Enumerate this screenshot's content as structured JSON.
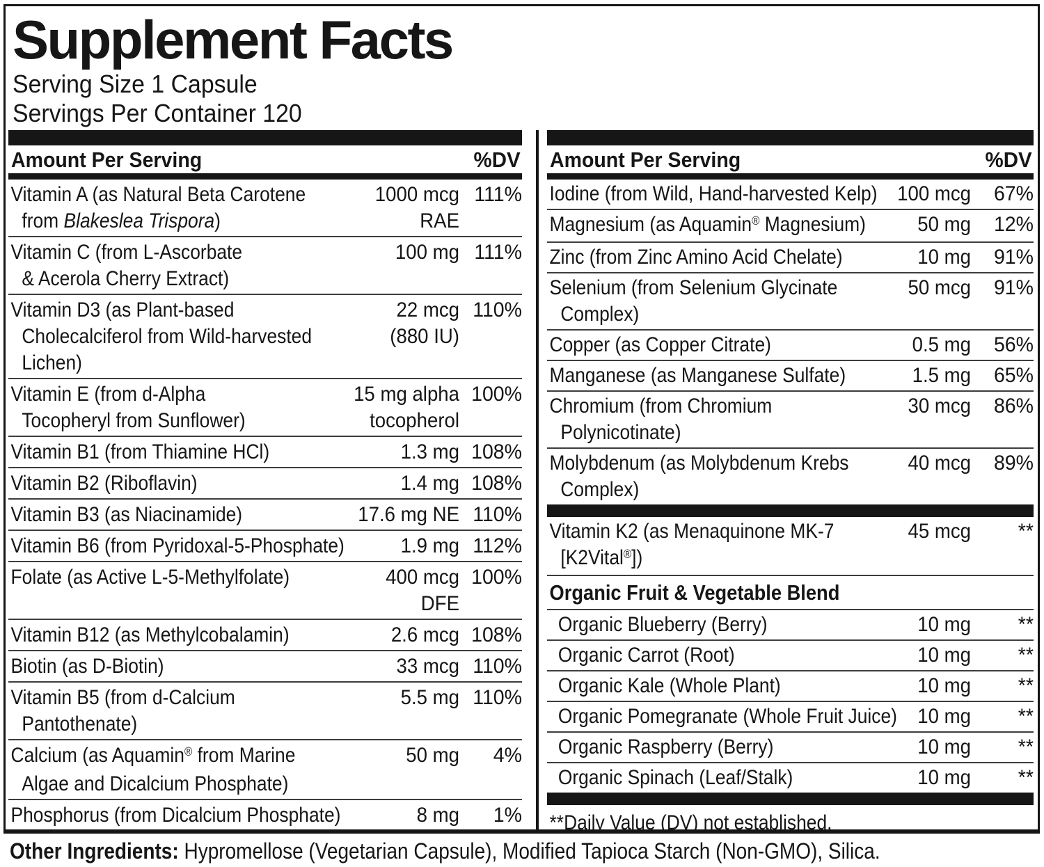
{
  "title": "Supplement Facts",
  "serving": {
    "size": "Serving Size 1 Capsule",
    "per_container": "Servings Per Container 120"
  },
  "left_column": {
    "header": {
      "amount": "Amount Per Serving",
      "dv": "%DV"
    },
    "items": [
      {
        "type": "row",
        "name": "Vitamin A (as Natural Beta Carotene\nfrom Blakeslea Trispora)",
        "italic": "Blakeslea Trispora",
        "amount": "1000 mcg\nRAE",
        "dv": "111%"
      },
      {
        "type": "row",
        "name": "Vitamin C (from L-Ascorbate\n& Acerola Cherry Extract)",
        "amount": "100 mg",
        "dv": "111%"
      },
      {
        "type": "row",
        "name": "Vitamin D3 (as Plant-based\nCholecalciferol from Wild-harvested\nLichen)",
        "amount": "22 mcg\n(880 IU)",
        "dv": "110%"
      },
      {
        "type": "row",
        "name": "Vitamin E (from d-Alpha\nTocopheryl from Sunflower)",
        "amount": "15 mg alpha\ntocopherol",
        "dv": "100%"
      },
      {
        "type": "row",
        "name": "Vitamin B1 (from Thiamine HCl)",
        "amount": "1.3 mg",
        "dv": "108%"
      },
      {
        "type": "row",
        "name": "Vitamin B2 (Riboflavin)",
        "amount": "1.4 mg",
        "dv": "108%"
      },
      {
        "type": "row",
        "name": "Vitamin B3 (as Niacinamide)",
        "amount": "17.6 mg NE",
        "dv": "110%"
      },
      {
        "type": "row",
        "name": "Vitamin B6 (from Pyridoxal-5-Phosphate)",
        "amount": "1.9 mg",
        "dv": "112%"
      },
      {
        "type": "row",
        "name": "Folate (as Active L-5-Methylfolate)",
        "amount": "400 mcg\nDFE",
        "dv": "100%"
      },
      {
        "type": "row",
        "name": "Vitamin B12 (as Methylcobalamin)",
        "amount": "2.6 mcg",
        "dv": "108%"
      },
      {
        "type": "row",
        "name": "Biotin (as D-Biotin)",
        "amount": "33 mcg",
        "dv": "110%"
      },
      {
        "type": "row",
        "name": "Vitamin B5 (from d-Calcium\nPantothenate)",
        "amount": "5.5 mg",
        "dv": "110%"
      },
      {
        "type": "row",
        "name": "Calcium (as Aquamin® from Marine\nAlgae and Dicalcium Phosphate)",
        "amount": "50 mg",
        "dv": "4%"
      },
      {
        "type": "row",
        "name": "Phosphorus (from Dicalcium Phosphate)",
        "amount": "8 mg",
        "dv": "1%"
      }
    ]
  },
  "right_column": {
    "header": {
      "amount": "Amount Per Serving",
      "dv": "%DV"
    },
    "items": [
      {
        "type": "row",
        "name": "Iodine (from Wild, Hand-harvested Kelp)",
        "amount": "100 mcg",
        "dv": "67%"
      },
      {
        "type": "row",
        "name": "Magnesium (as Aquamin® Magnesium)",
        "amount": "50 mg",
        "dv": "12%"
      },
      {
        "type": "row",
        "name": "Zinc (from Zinc Amino Acid Chelate)",
        "amount": "10 mg",
        "dv": "91%"
      },
      {
        "type": "row",
        "name": "Selenium (from Selenium Glycinate\nComplex)",
        "amount": "50 mcg",
        "dv": "91%"
      },
      {
        "type": "row",
        "name": "Copper (as Copper Citrate)",
        "amount": "0.5 mg",
        "dv": "56%"
      },
      {
        "type": "row",
        "name": "Manganese (as Manganese Sulfate)",
        "amount": "1.5 mg",
        "dv": "65%"
      },
      {
        "type": "row",
        "name": "Chromium (from Chromium\nPolynicotinate)",
        "amount": "30 mcg",
        "dv": "86%"
      },
      {
        "type": "row",
        "name": "Molybdenum (as Molybdenum Krebs\nComplex)",
        "amount": "40 mcg",
        "dv": "89%"
      },
      {
        "type": "bar"
      },
      {
        "type": "row",
        "name": "Vitamin K2 (as Menaquinone MK-7\n[K2Vital®])",
        "amount": "45 mcg",
        "dv": "**"
      },
      {
        "type": "heading",
        "text": "Organic Fruit & Vegetable Blend"
      },
      {
        "type": "row",
        "indent": true,
        "name": "Organic Blueberry (Berry)",
        "amount": "10 mg",
        "dv": "**"
      },
      {
        "type": "row",
        "indent": true,
        "name": "Organic Carrot (Root)",
        "amount": "10 mg",
        "dv": "**"
      },
      {
        "type": "row",
        "indent": true,
        "name": "Organic Kale (Whole Plant)",
        "amount": "10 mg",
        "dv": "**"
      },
      {
        "type": "row",
        "indent": true,
        "name": "Organic Pomegranate (Whole Fruit Juice)",
        "amount": "10 mg",
        "dv": "**"
      },
      {
        "type": "row",
        "indent": true,
        "name": "Organic Raspberry (Berry)",
        "amount": "10 mg",
        "dv": "**"
      },
      {
        "type": "row",
        "indent": true,
        "name": "Organic  Spinach (Leaf/Stalk)",
        "amount": "10 mg",
        "dv": "**"
      },
      {
        "type": "bar"
      },
      {
        "type": "note",
        "text": "**Daily Value (DV) not established."
      }
    ]
  },
  "other_ingredients": {
    "label": "Other Ingredients:",
    "text": " Hypromellose (Vegetarian Capsule), Modified Tapioca Starch (Non-GMO), Silica."
  }
}
